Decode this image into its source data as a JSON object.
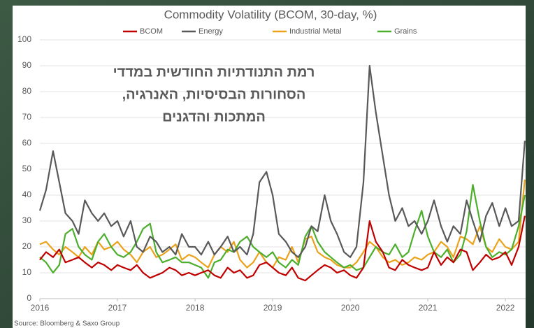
{
  "chart_data": {
    "type": "line",
    "title": "Commodity Volatility (BCOM, 30-day, %)",
    "annotation": [
      "רמת התנודתיות החודשית במדדי",
      "הסחורות הבסיסיות, האנרגיה,",
      "המתכות והדגנים"
    ],
    "source": "Source: Bloomberg & Saxo Group",
    "x": [
      2016.0,
      2016.08,
      2016.17,
      2016.25,
      2016.33,
      2016.42,
      2016.5,
      2016.58,
      2016.67,
      2016.75,
      2016.83,
      2016.92,
      2017.0,
      2017.08,
      2017.17,
      2017.25,
      2017.33,
      2017.42,
      2017.5,
      2017.58,
      2017.67,
      2017.75,
      2017.83,
      2017.92,
      2018.0,
      2018.08,
      2018.17,
      2018.25,
      2018.33,
      2018.42,
      2018.5,
      2018.58,
      2018.67,
      2018.75,
      2018.83,
      2018.92,
      2019.0,
      2019.08,
      2019.17,
      2019.25,
      2019.33,
      2019.42,
      2019.5,
      2019.58,
      2019.67,
      2019.75,
      2019.83,
      2019.92,
      2020.0,
      2020.08,
      2020.17,
      2020.25,
      2020.33,
      2020.42,
      2020.5,
      2020.58,
      2020.67,
      2020.75,
      2020.83,
      2020.92,
      2021.0,
      2021.08,
      2021.17,
      2021.25,
      2021.33,
      2021.42,
      2021.5,
      2021.58,
      2021.67,
      2021.75,
      2021.83,
      2021.92,
      2022.0,
      2022.08,
      2022.17,
      2022.25
    ],
    "series": [
      {
        "name": "BCOM",
        "color": "#c00000",
        "values": [
          15,
          18,
          16,
          19,
          14,
          15,
          16,
          14,
          12,
          14,
          13,
          11,
          13,
          12,
          11,
          13,
          10,
          8,
          9,
          10,
          12,
          11,
          9,
          10,
          9,
          10,
          11,
          9,
          8,
          12,
          10,
          11,
          8,
          9,
          13,
          14,
          12,
          10,
          9,
          12,
          8,
          7,
          9,
          11,
          13,
          12,
          10,
          11,
          9,
          8,
          12,
          30,
          22,
          18,
          12,
          11,
          15,
          13,
          12,
          11,
          12,
          18,
          13,
          16,
          14,
          19,
          18,
          11,
          14,
          17,
          15,
          16,
          18,
          13,
          20,
          32
        ]
      },
      {
        "name": "Energy",
        "color": "#595959",
        "values": [
          34,
          42,
          57,
          45,
          33,
          30,
          25,
          38,
          33,
          30,
          33,
          28,
          30,
          24,
          30,
          20,
          18,
          24,
          22,
          18,
          20,
          17,
          25,
          20,
          20,
          17,
          22,
          17,
          20,
          24,
          18,
          20,
          17,
          25,
          45,
          49,
          40,
          25,
          22,
          18,
          16,
          20,
          28,
          26,
          40,
          30,
          25,
          18,
          16,
          20,
          45,
          90,
          72,
          55,
          40,
          30,
          35,
          28,
          30,
          25,
          30,
          38,
          28,
          22,
          28,
          25,
          38,
          30,
          22,
          32,
          37,
          28,
          35,
          28,
          30,
          61
        ]
      },
      {
        "name": "Industrial Metal",
        "color": "#eba21b",
        "values": [
          21,
          22,
          19,
          17,
          20,
          18,
          16,
          20,
          17,
          22,
          19,
          20,
          22,
          19,
          17,
          14,
          18,
          20,
          16,
          17,
          19,
          21,
          15,
          17,
          16,
          14,
          12,
          17,
          20,
          18,
          22,
          15,
          12,
          14,
          18,
          14,
          12,
          16,
          15,
          20,
          14,
          23,
          24,
          18,
          16,
          15,
          13,
          12,
          12,
          14,
          18,
          22,
          20,
          16,
          14,
          15,
          13,
          14,
          16,
          15,
          17,
          18,
          22,
          20,
          16,
          24,
          23,
          21,
          28,
          20,
          18,
          23,
          20,
          19,
          22,
          46
        ]
      },
      {
        "name": "Grains",
        "color": "#4caf2c",
        "values": [
          16,
          14,
          10,
          13,
          25,
          27,
          20,
          17,
          15,
          22,
          25,
          20,
          17,
          16,
          18,
          22,
          27,
          29,
          18,
          14,
          15,
          16,
          14,
          14,
          13,
          12,
          8,
          14,
          15,
          19,
          18,
          22,
          24,
          20,
          18,
          16,
          18,
          14,
          12,
          15,
          13,
          24,
          28,
          22,
          18,
          16,
          14,
          12,
          13,
          11,
          12,
          16,
          20,
          18,
          17,
          21,
          16,
          18,
          26,
          34,
          24,
          18,
          16,
          19,
          14,
          17,
          26,
          44,
          30,
          20,
          16,
          18,
          17,
          19,
          28,
          40
        ]
      }
    ],
    "xlim": [
      2016,
      2022.26
    ],
    "xticks": [
      2016,
      2017,
      2018,
      2019,
      2020,
      2021,
      2022
    ],
    "ylim": [
      0,
      100
    ],
    "yticks": [
      0,
      10,
      20,
      30,
      40,
      50,
      60,
      70,
      80,
      90,
      100
    ],
    "grid": true
  }
}
